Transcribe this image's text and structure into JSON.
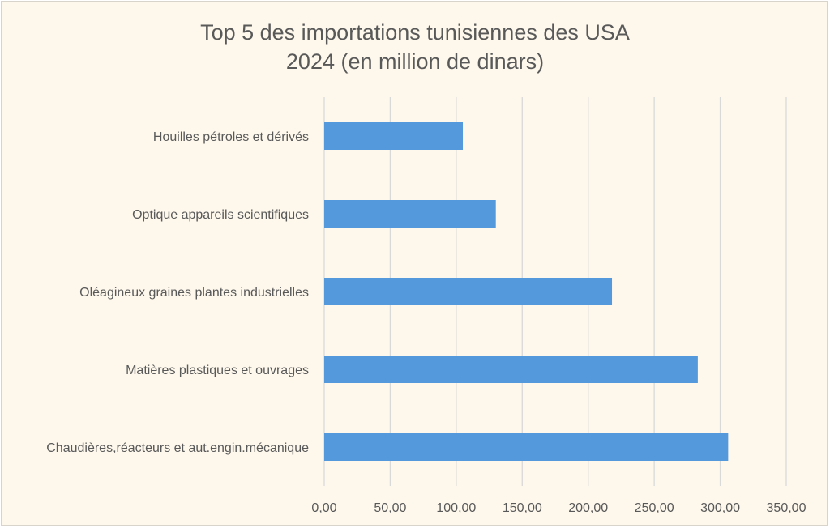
{
  "chart_data": {
    "type": "bar",
    "orientation": "horizontal",
    "title_line1": "Top 5 des importations tunisiennes des USA",
    "title_line2": "2024 (en million de dinars)",
    "categories": [
      "Houilles pétroles et dérivés",
      "Optique appareils scientifiques",
      "Oléagineux graines plantes industrielles",
      "Matières plastiques et ouvrages",
      "Chaudières,réacteurs et aut.engin.mécanique"
    ],
    "values": [
      105,
      130,
      218,
      283,
      306
    ],
    "xlim": [
      0,
      350
    ],
    "xticks": [
      "0,00",
      "50,00",
      "100,00",
      "150,00",
      "200,00",
      "250,00",
      "300,00",
      "350,00"
    ],
    "grid": true,
    "legend": "none",
    "bar_color": "#5599dd",
    "grid_color": "#d9d9d9",
    "text_color": "#595959",
    "background_color": "#fdf7ec"
  }
}
